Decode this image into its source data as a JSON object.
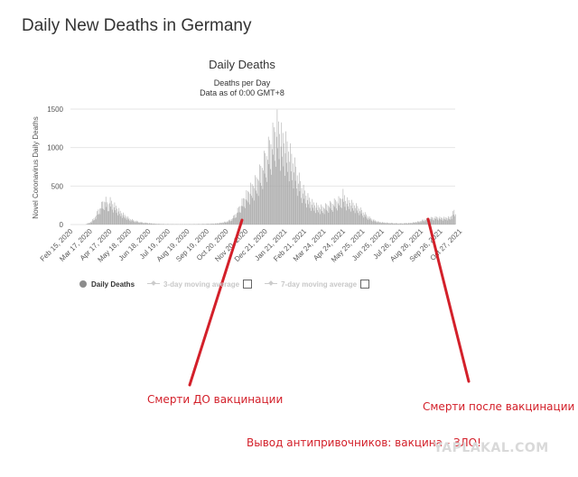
{
  "page": {
    "title": "Daily New Deaths in Germany"
  },
  "chart_data": {
    "type": "bar",
    "title": "Daily Deaths",
    "subtitle_lines": [
      "Deaths per Day",
      "Data as of 0:00 GMT+8"
    ],
    "ylabel": "Novel Coronavirus Daily Deaths",
    "ylim": [
      0,
      1500
    ],
    "yticks": [
      0,
      500,
      1000,
      1500
    ],
    "xlim": [
      "2020-02-15",
      "2021-10-20"
    ],
    "xticks": [
      {
        "date": "2020-02-15",
        "label": "Feb 15, 2020"
      },
      {
        "date": "2020-03-17",
        "label": "Mar 17, 2020"
      },
      {
        "date": "2020-04-17",
        "label": "Apr 17, 2020"
      },
      {
        "date": "2020-05-18",
        "label": "May 18, 2020"
      },
      {
        "date": "2020-06-18",
        "label": "Jun 18, 2020"
      },
      {
        "date": "2020-07-19",
        "label": "Jul 19, 2020"
      },
      {
        "date": "2020-08-19",
        "label": "Aug 19, 2020"
      },
      {
        "date": "2020-09-19",
        "label": "Sep 19, 2020"
      },
      {
        "date": "2020-10-20",
        "label": "Oct 20, 2020"
      },
      {
        "date": "2020-11-20",
        "label": "Nov 20, 2020"
      },
      {
        "date": "2020-12-21",
        "label": "Dec 21, 2020"
      },
      {
        "date": "2021-01-21",
        "label": "Jan 21, 2021"
      },
      {
        "date": "2021-02-21",
        "label": "Feb 21, 2021"
      },
      {
        "date": "2021-03-24",
        "label": "Mar 24, 2021"
      },
      {
        "date": "2021-04-24",
        "label": "Apr 24, 2021"
      },
      {
        "date": "2021-05-25",
        "label": "May 25, 2021"
      },
      {
        "date": "2021-06-25",
        "label": "Jun 25, 2021"
      },
      {
        "date": "2021-07-26",
        "label": "Jul 26, 2021"
      },
      {
        "date": "2021-08-26",
        "label": "Aug 26, 2021"
      },
      {
        "date": "2021-09-26",
        "label": "Sep 26, 2021"
      },
      {
        "date": "2021-10-27",
        "label": "Oct 27, 2021"
      }
    ],
    "grid": true,
    "bar_color": "#a6a6a6",
    "series": [
      {
        "name": "Daily Deaths",
        "points": [
          [
            "2020-03-10",
            5
          ],
          [
            "2020-03-17",
            25
          ],
          [
            "2020-03-24",
            80
          ],
          [
            "2020-03-31",
            190
          ],
          [
            "2020-04-07",
            280
          ],
          [
            "2020-04-10",
            315
          ],
          [
            "2020-04-14",
            240
          ],
          [
            "2020-04-17",
            300
          ],
          [
            "2020-04-22",
            260
          ],
          [
            "2020-04-28",
            210
          ],
          [
            "2020-05-05",
            150
          ],
          [
            "2020-05-12",
            110
          ],
          [
            "2020-05-19",
            70
          ],
          [
            "2020-05-26",
            50
          ],
          [
            "2020-06-02",
            35
          ],
          [
            "2020-06-09",
            25
          ],
          [
            "2020-06-16",
            20
          ],
          [
            "2020-06-23",
            15
          ],
          [
            "2020-06-30",
            10
          ],
          [
            "2020-07-15",
            6
          ],
          [
            "2020-08-01",
            5
          ],
          [
            "2020-08-15",
            5
          ],
          [
            "2020-09-01",
            6
          ],
          [
            "2020-09-15",
            8
          ],
          [
            "2020-10-01",
            12
          ],
          [
            "2020-10-10",
            20
          ],
          [
            "2020-10-20",
            35
          ],
          [
            "2020-10-27",
            60
          ],
          [
            "2020-11-03",
            120
          ],
          [
            "2020-11-10",
            220
          ],
          [
            "2020-11-17",
            320
          ],
          [
            "2020-11-24",
            400
          ],
          [
            "2020-12-01",
            480
          ],
          [
            "2020-12-08",
            560
          ],
          [
            "2020-12-15",
            700
          ],
          [
            "2020-12-22",
            850
          ],
          [
            "2020-12-29",
            1000
          ],
          [
            "2021-01-05",
            1150
          ],
          [
            "2021-01-08",
            1240
          ],
          [
            "2021-01-12",
            1180
          ],
          [
            "2021-01-15",
            1100
          ],
          [
            "2021-01-19",
            1050
          ],
          [
            "2021-01-26",
            950
          ],
          [
            "2021-02-02",
            800
          ],
          [
            "2021-02-09",
            650
          ],
          [
            "2021-02-16",
            480
          ],
          [
            "2021-02-23",
            380
          ],
          [
            "2021-03-02",
            300
          ],
          [
            "2021-03-09",
            250
          ],
          [
            "2021-03-16",
            220
          ],
          [
            "2021-03-23",
            210
          ],
          [
            "2021-03-30",
            240
          ],
          [
            "2021-04-06",
            260
          ],
          [
            "2021-04-13",
            290
          ],
          [
            "2021-04-20",
            310
          ],
          [
            "2021-04-24",
            380
          ],
          [
            "2021-04-28",
            300
          ],
          [
            "2021-05-04",
            280
          ],
          [
            "2021-05-11",
            250
          ],
          [
            "2021-05-18",
            210
          ],
          [
            "2021-05-25",
            160
          ],
          [
            "2021-06-01",
            110
          ],
          [
            "2021-06-08",
            70
          ],
          [
            "2021-06-15",
            45
          ],
          [
            "2021-06-22",
            30
          ],
          [
            "2021-06-29",
            25
          ],
          [
            "2021-07-06",
            20
          ],
          [
            "2021-07-13",
            18
          ],
          [
            "2021-07-20",
            15
          ],
          [
            "2021-07-27",
            15
          ],
          [
            "2021-08-03",
            18
          ],
          [
            "2021-08-10",
            20
          ],
          [
            "2021-08-17",
            30
          ],
          [
            "2021-08-24",
            40
          ],
          [
            "2021-08-31",
            60
          ],
          [
            "2021-09-07",
            75
          ],
          [
            "2021-09-14",
            85
          ],
          [
            "2021-09-21",
            90
          ],
          [
            "2021-09-28",
            80
          ],
          [
            "2021-10-05",
            85
          ],
          [
            "2021-10-12",
            90
          ],
          [
            "2021-10-18",
            170
          ],
          [
            "2021-10-20",
            130
          ]
        ]
      }
    ],
    "legend": [
      {
        "label": "Daily Deaths",
        "active": true
      },
      {
        "label": "3-day moving average",
        "active": false
      },
      {
        "label": "7-day moving average",
        "active": false
      }
    ],
    "legend_position": "bottom"
  },
  "annotations": {
    "before": "Смерти ДО вакцинации",
    "after": "Смерти после вакцинации",
    "conclusion": "Вывод антипривочников: вакцина - ЗЛО!",
    "arrow_color": "#d3202a"
  },
  "watermark": "YAPLAKAL.COM"
}
